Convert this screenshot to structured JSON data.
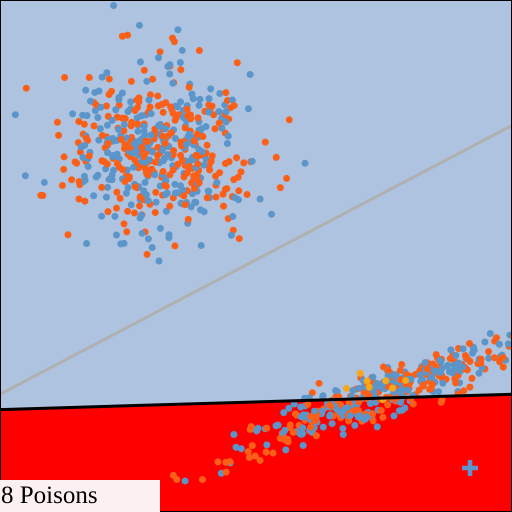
{
  "caption": "8 Poisons",
  "colors": {
    "region_upper": "#aec3df",
    "region_lower": "#ff0000",
    "boundary_line": "#000000",
    "reference_line": "#b0b0b0",
    "class_blue": "#5b95c9",
    "class_orange": "#fb5f18",
    "poison": "#f6a81a",
    "target_marker": "#5b95c9",
    "frame": "#000000"
  },
  "chart_data": {
    "type": "scatter",
    "title": "",
    "xlabel": "",
    "ylabel": "",
    "xlim": [
      0,
      10
    ],
    "ylim": [
      0,
      10
    ],
    "grid": false,
    "clusters": [
      {
        "name": "",
        "center": [
          3.1,
          7.1
        ],
        "spread": [
          0.9,
          0.8
        ],
        "angle_deg": 0,
        "count": 520,
        "classes": [
          "blue",
          "orange"
        ]
      },
      {
        "name": "",
        "center": [
          7.4,
          2.3
        ],
        "spread": [
          1.55,
          0.22
        ],
        "angle_deg": 22,
        "count": 420,
        "classes": [
          "blue",
          "orange"
        ]
      }
    ],
    "poison_points": {
      "count": 8,
      "center": [
        7.3,
        2.45
      ],
      "spread": [
        0.45,
        0.12
      ]
    },
    "decision_boundary": {
      "from": [
        0,
        2.0
      ],
      "to": [
        10,
        2.3
      ],
      "fill_above": "region_upper",
      "fill_below": "region_lower"
    },
    "reference_line": {
      "from": [
        0,
        2.3
      ],
      "to": [
        10,
        7.55
      ]
    },
    "target_point": {
      "x": 9.18,
      "y": 0.86,
      "marker": "plus"
    }
  }
}
